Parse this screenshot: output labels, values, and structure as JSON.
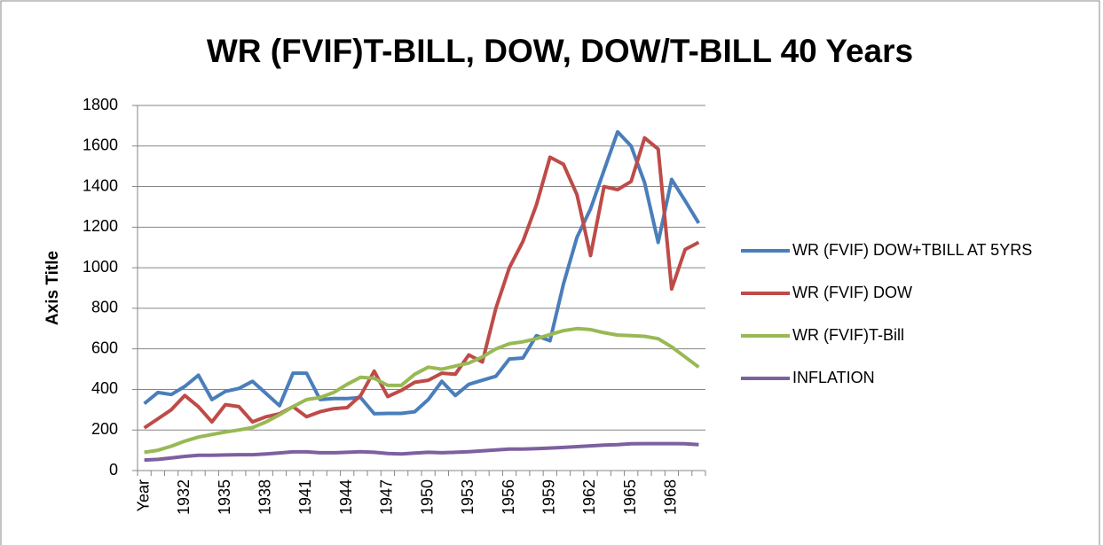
{
  "chart_data": {
    "type": "line",
    "title": "WR (FVIF)T-BILL, DOW, DOW/T-BILL 40 Years",
    "y_label": "Axis Title",
    "categories": [
      "Year",
      null,
      null,
      "1932",
      null,
      null,
      "1935",
      null,
      null,
      "1938",
      null,
      null,
      "1941",
      null,
      null,
      "1944",
      null,
      null,
      "1947",
      null,
      null,
      "1950",
      null,
      null,
      "1953",
      null,
      null,
      "1956",
      null,
      null,
      "1959",
      null,
      null,
      "1962",
      null,
      null,
      "1965",
      null,
      null,
      "1968",
      null,
      null
    ],
    "series": [
      {
        "name": "WR (FVIF) DOW+TBILL AT 5YRS",
        "color": "#4a7ebb",
        "values": [
          330,
          385,
          375,
          415,
          470,
          350,
          390,
          405,
          440,
          380,
          320,
          480,
          480,
          350,
          355,
          355,
          360,
          280,
          282,
          282,
          290,
          350,
          440,
          370,
          425,
          445,
          465,
          550,
          555,
          665,
          640,
          920,
          1150,
          1290,
          1480,
          1670,
          1600,
          1420,
          1125,
          1435,
          1330,
          1220
        ]
      },
      {
        "name": "WR (FVIF) DOW",
        "color": "#be4b48",
        "values": [
          210,
          255,
          300,
          370,
          315,
          240,
          325,
          315,
          240,
          265,
          280,
          315,
          265,
          290,
          305,
          310,
          370,
          490,
          365,
          395,
          435,
          445,
          480,
          475,
          570,
          535,
          800,
          1000,
          1130,
          1310,
          1545,
          1510,
          1360,
          1060,
          1400,
          1385,
          1425,
          1640,
          1585,
          895,
          1090,
          1125
        ]
      },
      {
        "name": "WR (FVIF)T-Bill",
        "color": "#98b954",
        "values": [
          90,
          100,
          120,
          145,
          165,
          178,
          190,
          200,
          212,
          240,
          275,
          315,
          350,
          360,
          385,
          425,
          460,
          455,
          420,
          420,
          475,
          510,
          500,
          515,
          530,
          560,
          600,
          625,
          635,
          650,
          670,
          690,
          700,
          695,
          680,
          668,
          665,
          662,
          650,
          610,
          560,
          510
        ]
      },
      {
        "name": "INFLATION",
        "color": "#7d60a0",
        "values": [
          52,
          55,
          62,
          70,
          75,
          75,
          77,
          78,
          78,
          82,
          87,
          92,
          92,
          88,
          88,
          90,
          93,
          90,
          84,
          82,
          86,
          90,
          88,
          90,
          93,
          97,
          102,
          106,
          106,
          108,
          111,
          114,
          118,
          122,
          126,
          128,
          132,
          133,
          133,
          133,
          132,
          128
        ]
      }
    ],
    "ylim": [
      0,
      1800
    ],
    "yticks": [
      0,
      200,
      400,
      600,
      800,
      1000,
      1200,
      1400,
      1600,
      1800
    ],
    "grid": true,
    "legend": "right"
  }
}
